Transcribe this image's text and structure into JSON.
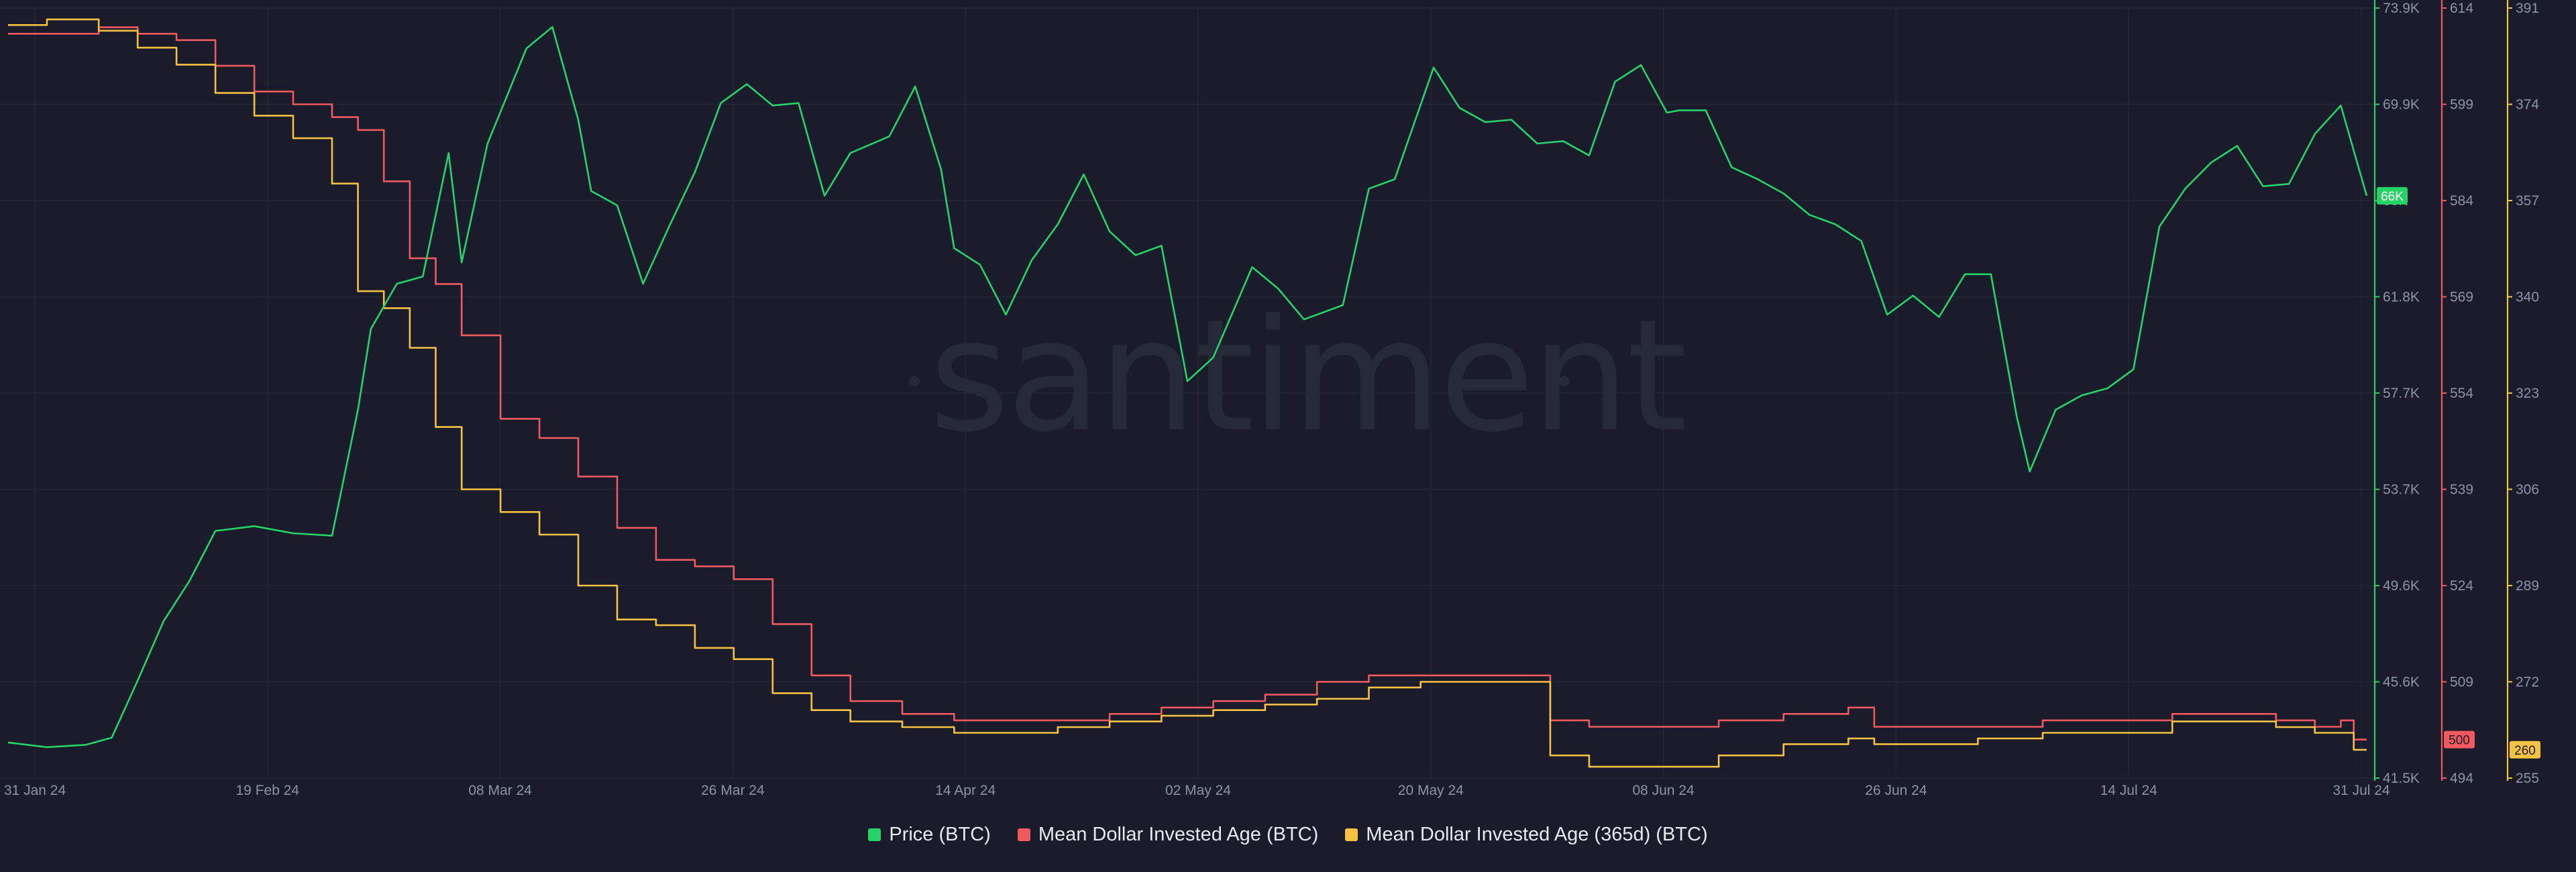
{
  "watermark": "santiment",
  "colors": {
    "background": "#1a1c2b",
    "grid": "#242737",
    "price": "#26d366",
    "mdia": "#ef5a5f",
    "mdia365": "#f6c243"
  },
  "legend": [
    {
      "label": "Price (BTC)",
      "color": "#26d366"
    },
    {
      "label": "Mean Dollar Invested Age (BTC)",
      "color": "#ef5a5f"
    },
    {
      "label": "Mean Dollar Invested Age (365d) (BTC)",
      "color": "#f6c243"
    }
  ],
  "chart_data": {
    "type": "line",
    "title": "",
    "x_tick_labels": [
      "31 Jan 24",
      "19 Feb 24",
      "08 Mar 24",
      "26 Mar 24",
      "14 Apr 24",
      "02 May 24",
      "20 May 24",
      "08 Jun 24",
      "26 Jun 24",
      "14 Jul 24",
      "31 Jul 24"
    ],
    "xlim": [
      "2024-01-31",
      "2024-07-31"
    ],
    "grid": true,
    "legend_position": "bottom",
    "axes": [
      {
        "id": "price",
        "ylim": [
          41500,
          73900
        ],
        "tick_labels": [
          "73.9K",
          "69.9K",
          "66K",
          "61.8K",
          "57.7K",
          "53.7K",
          "49.6K",
          "45.6K",
          "41.5K"
        ],
        "current_value_label": "66K"
      },
      {
        "id": "mdia",
        "ylim": [
          494,
          614
        ],
        "tick_labels": [
          "614",
          "599",
          "584",
          "569",
          "554",
          "539",
          "524",
          "509",
          "494"
        ],
        "current_value_label": "500"
      },
      {
        "id": "mdia365",
        "ylim": [
          255,
          391
        ],
        "tick_labels": [
          "391",
          "374",
          "357",
          "340",
          "323",
          "306",
          "289",
          "272",
          "255"
        ],
        "current_value_label": "260"
      }
    ],
    "series": [
      {
        "name": "Price (BTC)",
        "axis": "price",
        "color": "#26d366",
        "x": [
          "2024-01-31",
          "2024-02-03",
          "2024-02-06",
          "2024-02-08",
          "2024-02-10",
          "2024-02-12",
          "2024-02-14",
          "2024-02-16",
          "2024-02-19",
          "2024-02-22",
          "2024-02-25",
          "2024-02-27",
          "2024-02-28",
          "2024-03-01",
          "2024-03-03",
          "2024-03-05",
          "2024-03-06",
          "2024-03-08",
          "2024-03-11",
          "2024-03-13",
          "2024-03-15",
          "2024-03-16",
          "2024-03-18",
          "2024-03-20",
          "2024-03-22",
          "2024-03-24",
          "2024-03-26",
          "2024-03-28",
          "2024-03-30",
          "2024-04-01",
          "2024-04-03",
          "2024-04-05",
          "2024-04-08",
          "2024-04-10",
          "2024-04-12",
          "2024-04-13",
          "2024-04-15",
          "2024-04-17",
          "2024-04-19",
          "2024-04-21",
          "2024-04-23",
          "2024-04-25",
          "2024-04-27",
          "2024-04-29",
          "2024-05-01",
          "2024-05-03",
          "2024-05-06",
          "2024-05-08",
          "2024-05-10",
          "2024-05-13",
          "2024-05-15",
          "2024-05-17",
          "2024-05-20",
          "2024-05-22",
          "2024-05-24",
          "2024-05-26",
          "2024-05-28",
          "2024-05-30",
          "2024-06-01",
          "2024-06-03",
          "2024-06-05",
          "2024-06-07",
          "2024-06-08",
          "2024-06-10",
          "2024-06-12",
          "2024-06-14",
          "2024-06-16",
          "2024-06-18",
          "2024-06-20",
          "2024-06-22",
          "2024-06-24",
          "2024-06-26",
          "2024-06-28",
          "2024-06-30",
          "2024-07-02",
          "2024-07-04",
          "2024-07-05",
          "2024-07-07",
          "2024-07-09",
          "2024-07-11",
          "2024-07-13",
          "2024-07-15",
          "2024-07-17",
          "2024-07-19",
          "2024-07-21",
          "2024-07-23",
          "2024-07-25",
          "2024-07-27",
          "2024-07-29",
          "2024-07-31"
        ],
        "values": [
          43000,
          42800,
          42900,
          43200,
          45600,
          48100,
          49800,
          51900,
          52100,
          51800,
          51700,
          57000,
          60400,
          62300,
          62600,
          67800,
          63200,
          68200,
          72200,
          73100,
          69200,
          66200,
          65600,
          62300,
          64700,
          67000,
          69900,
          70700,
          69800,
          69900,
          66000,
          67800,
          68500,
          70600,
          67100,
          63800,
          63100,
          61000,
          63300,
          64800,
          66900,
          64500,
          63500,
          63900,
          58200,
          59200,
          63000,
          62100,
          60800,
          61400,
          66300,
          66700,
          71400,
          69700,
          69100,
          69200,
          68200,
          68300,
          67700,
          70800,
          71500,
          69500,
          69600,
          69600,
          67200,
          66700,
          66100,
          65200,
          64800,
          64100,
          61000,
          61800,
          60900,
          62700,
          62700,
          56700,
          54400,
          57000,
          57600,
          57900,
          58700,
          64700,
          66300,
          67400,
          68100,
          66400,
          66500,
          68600,
          69800,
          66000
        ]
      },
      {
        "name": "Mean Dollar Invested Age (BTC)",
        "axis": "mdia",
        "color": "#ef5a5f",
        "x": [
          "2024-01-31",
          "2024-02-03",
          "2024-02-07",
          "2024-02-10",
          "2024-02-13",
          "2024-02-16",
          "2024-02-19",
          "2024-02-22",
          "2024-02-25",
          "2024-02-27",
          "2024-02-29",
          "2024-03-02",
          "2024-03-04",
          "2024-03-06",
          "2024-03-09",
          "2024-03-12",
          "2024-03-15",
          "2024-03-18",
          "2024-03-21",
          "2024-03-24",
          "2024-03-27",
          "2024-03-30",
          "2024-04-02",
          "2024-04-05",
          "2024-04-09",
          "2024-04-13",
          "2024-04-17",
          "2024-04-21",
          "2024-04-25",
          "2024-04-29",
          "2024-05-03",
          "2024-05-07",
          "2024-05-11",
          "2024-05-15",
          "2024-05-19",
          "2024-05-23",
          "2024-05-26",
          "2024-05-28",
          "2024-05-29",
          "2024-06-01",
          "2024-06-06",
          "2024-06-11",
          "2024-06-16",
          "2024-06-21",
          "2024-06-23",
          "2024-06-26",
          "2024-07-01",
          "2024-07-06",
          "2024-07-11",
          "2024-07-16",
          "2024-07-20",
          "2024-07-24",
          "2024-07-27",
          "2024-07-29",
          "2024-07-30",
          "2024-07-31"
        ],
        "values": [
          610,
          610,
          611,
          610,
          609,
          605,
          601,
          599,
          597,
          595,
          587,
          575,
          571,
          563,
          550,
          547,
          541,
          533,
          528,
          527,
          525,
          518,
          510,
          506,
          504,
          503,
          503,
          503,
          504,
          505,
          506,
          507,
          509,
          510,
          510,
          510,
          510,
          510,
          503,
          502,
          502,
          503,
          504,
          505,
          502,
          502,
          502,
          503,
          503,
          504,
          504,
          503,
          502,
          503,
          500,
          500
        ]
      },
      {
        "name": "Mean Dollar Invested Age (365d) (BTC)",
        "axis": "mdia365",
        "color": "#f6c243",
        "x": [
          "2024-01-31",
          "2024-02-03",
          "2024-02-07",
          "2024-02-10",
          "2024-02-13",
          "2024-02-16",
          "2024-02-19",
          "2024-02-22",
          "2024-02-25",
          "2024-02-27",
          "2024-02-29",
          "2024-03-02",
          "2024-03-04",
          "2024-03-06",
          "2024-03-09",
          "2024-03-12",
          "2024-03-15",
          "2024-03-18",
          "2024-03-21",
          "2024-03-24",
          "2024-03-27",
          "2024-03-30",
          "2024-04-02",
          "2024-04-05",
          "2024-04-09",
          "2024-04-13",
          "2024-04-17",
          "2024-04-21",
          "2024-04-25",
          "2024-04-29",
          "2024-05-03",
          "2024-05-07",
          "2024-05-11",
          "2024-05-15",
          "2024-05-19",
          "2024-05-23",
          "2024-05-26",
          "2024-05-28",
          "2024-05-29",
          "2024-06-01",
          "2024-06-06",
          "2024-06-11",
          "2024-06-16",
          "2024-06-21",
          "2024-06-23",
          "2024-06-26",
          "2024-07-01",
          "2024-07-06",
          "2024-07-11",
          "2024-07-16",
          "2024-07-20",
          "2024-07-24",
          "2024-07-27",
          "2024-07-29",
          "2024-07-30",
          "2024-07-31"
        ],
        "values": [
          388,
          389,
          387,
          384,
          381,
          376,
          372,
          368,
          360,
          341,
          338,
          331,
          317,
          306,
          302,
          298,
          289,
          283,
          282,
          278,
          276,
          270,
          267,
          265,
          264,
          263,
          263,
          264,
          265,
          266,
          267,
          268,
          269,
          271,
          272,
          272,
          272,
          272,
          259,
          257,
          257,
          259,
          261,
          262,
          261,
          261,
          262,
          263,
          263,
          265,
          265,
          264,
          263,
          263,
          260,
          260
        ]
      }
    ]
  }
}
